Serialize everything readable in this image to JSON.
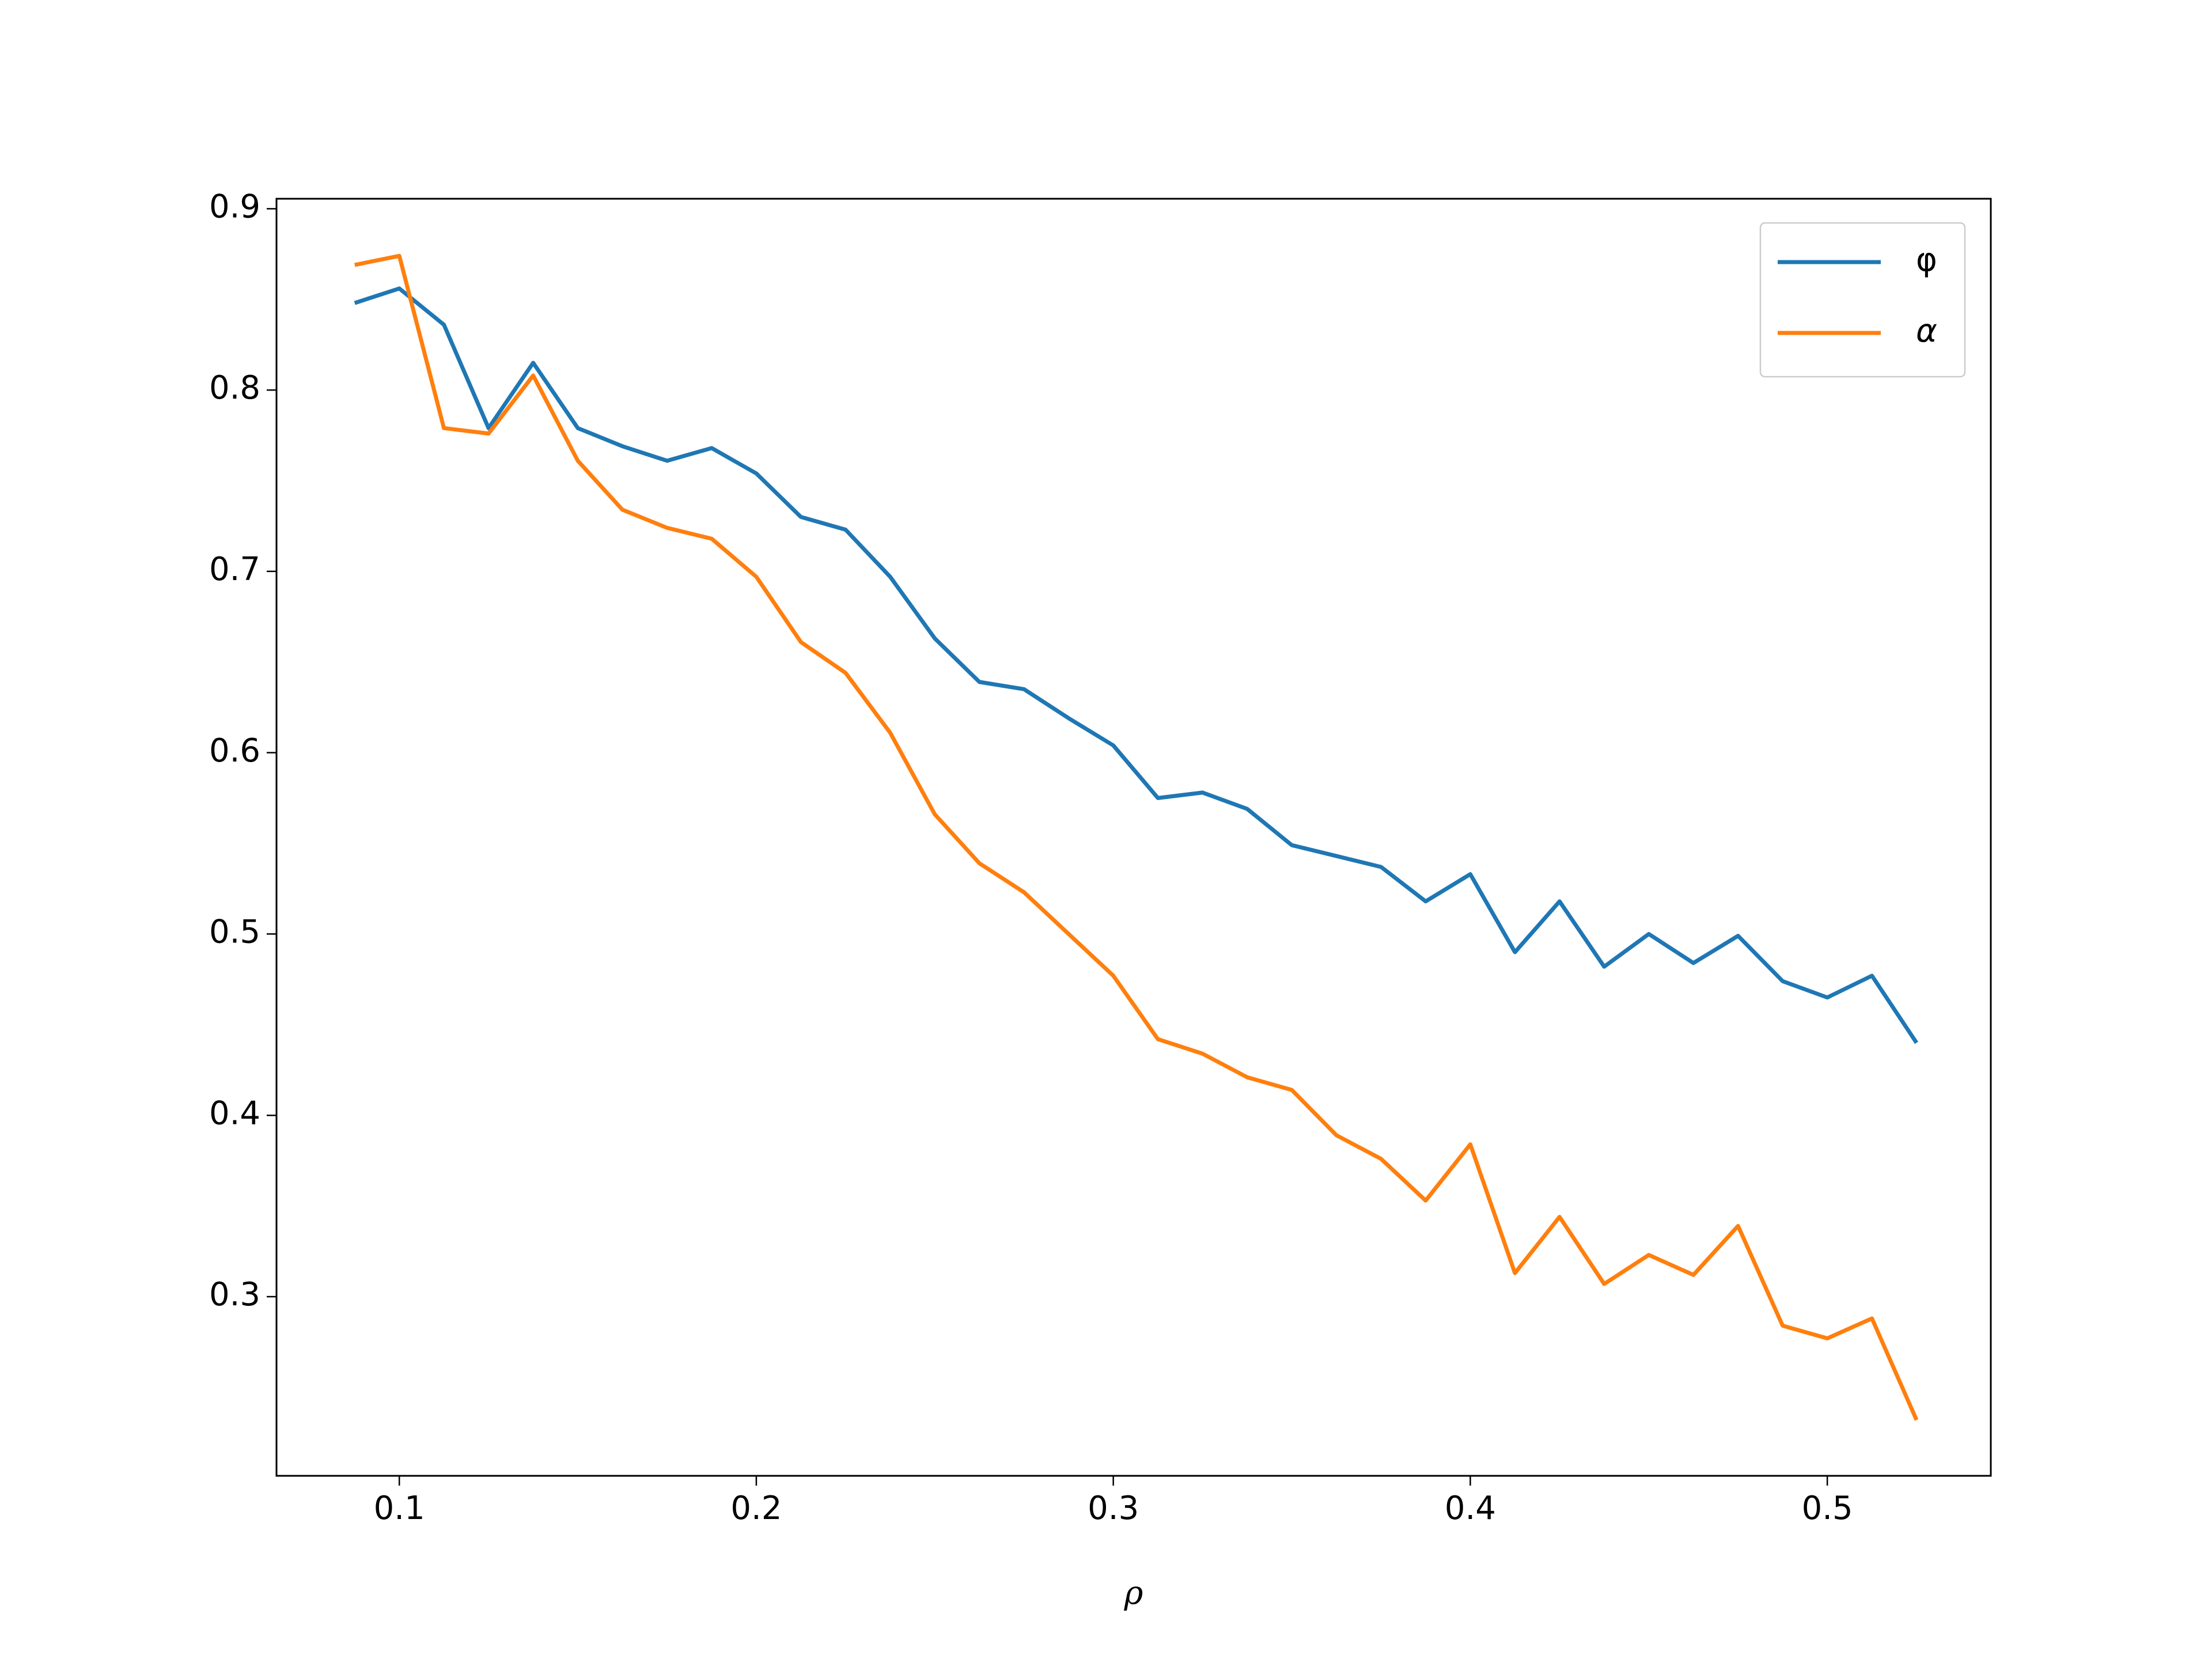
{
  "chart_data": {
    "type": "line",
    "xlabel": "ρ",
    "x": [
      0.0875,
      0.1,
      0.1125,
      0.125,
      0.1375,
      0.15,
      0.1625,
      0.175,
      0.1875,
      0.2,
      0.2125,
      0.225,
      0.2375,
      0.25,
      0.2625,
      0.275,
      0.2875,
      0.3,
      0.3125,
      0.325,
      0.3375,
      0.35,
      0.3625,
      0.375,
      0.3875,
      0.4,
      0.4125,
      0.425,
      0.4375,
      0.45,
      0.4625,
      0.475,
      0.4875,
      0.5,
      0.5125,
      0.525
    ],
    "series": [
      {
        "name": "φ",
        "color": "#1f77b4",
        "values": [
          0.848,
          0.856,
          0.836,
          0.779,
          0.815,
          0.779,
          0.769,
          0.761,
          0.768,
          0.754,
          0.73,
          0.723,
          0.697,
          0.663,
          0.639,
          0.635,
          0.619,
          0.604,
          0.575,
          0.578,
          0.569,
          0.549,
          0.543,
          0.537,
          0.518,
          0.533,
          0.49,
          0.518,
          0.482,
          0.5,
          0.484,
          0.499,
          0.474,
          0.465,
          0.477,
          0.44
        ]
      },
      {
        "name": "α",
        "color": "#ff7f0e",
        "values": [
          0.869,
          0.874,
          0.779,
          0.776,
          0.808,
          0.761,
          0.734,
          0.724,
          0.718,
          0.697,
          0.661,
          0.644,
          0.611,
          0.566,
          0.539,
          0.523,
          0.5,
          0.477,
          0.442,
          0.434,
          0.421,
          0.414,
          0.389,
          0.376,
          0.353,
          0.384,
          0.313,
          0.344,
          0.307,
          0.323,
          0.312,
          0.339,
          0.284,
          0.277,
          0.288,
          0.232
        ]
      }
    ],
    "xlim": [
      0.0656,
      0.5458
    ],
    "xticks": [
      0.1,
      0.2,
      0.3,
      0.4,
      0.5
    ],
    "ylim": [
      0.2012,
      0.9055
    ],
    "yticks": [
      0.3,
      0.4,
      0.5,
      0.6,
      0.7,
      0.8,
      0.9
    ],
    "legend": "upper right"
  }
}
